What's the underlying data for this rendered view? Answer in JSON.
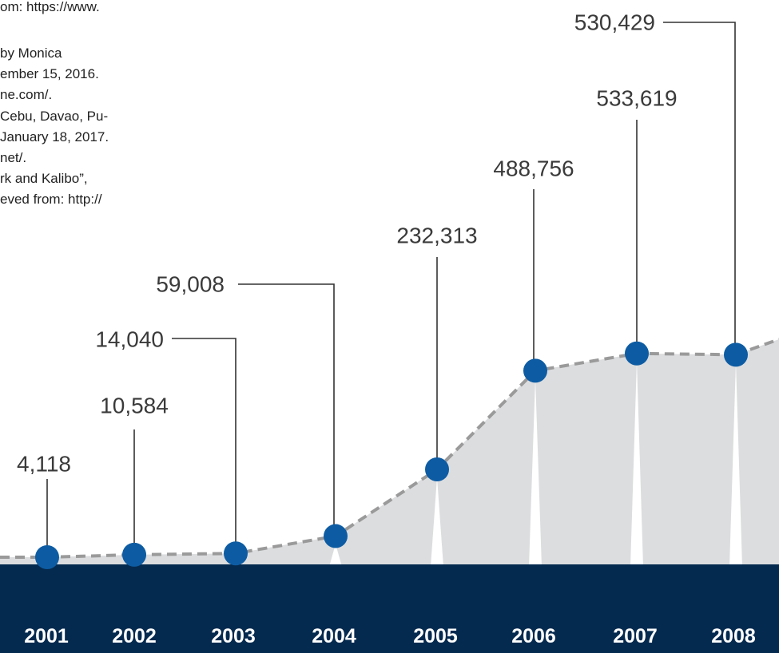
{
  "references": [
    "om: https://www.",
    " by Monica",
    "ember 15, 2016.",
    "ne.com/.",
    "Cebu, Davao, Pu-",
    "January 18, 2017.",
    "net/.",
    "rk and Kalibo”,",
    "eved from: http://"
  ],
  "chart_data": {
    "type": "line",
    "categories": [
      "2001",
      "2002",
      "2003",
      "2004",
      "2005",
      "2006",
      "2007",
      "2008"
    ],
    "values": [
      4118,
      10584,
      14040,
      59008,
      232313,
      488756,
      533619,
      530429
    ],
    "value_labels": [
      "4,118",
      "10,584",
      "14,040",
      "59,008",
      "232,313",
      "488,756",
      "533,619",
      "530,429"
    ],
    "color": "#0d5ca3"
  }
}
